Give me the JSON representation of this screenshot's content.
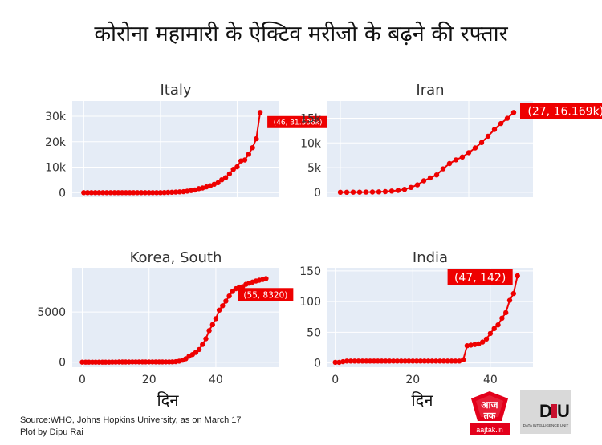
{
  "title": "कोरोना महामारी के ऐक्टिव मरीजो के बढ़ने की रफ्तार",
  "xlabel": "दिन",
  "source_text": "Source:WHO, Johns Hopkins University, as on March 17",
  "credit_text": "Plot by Dipu Rai",
  "logos": {
    "aajtak_text": "आज तक",
    "aajtak_url": "aajtak.in",
    "diu_text": "DIU",
    "diu_subtext": "DATA INTELLIGENCE UNIT"
  },
  "colors": {
    "line": "#ee0000",
    "plot_bg": "#e5ecf6",
    "grid": "#ffffff",
    "label_bg": "#ee0000"
  },
  "chart_data": [
    {
      "type": "line",
      "title": "Italy",
      "xlim": [
        -3,
        51
      ],
      "ylim": [
        -1800,
        36000
      ],
      "yticks": [
        0,
        10000,
        20000,
        30000
      ],
      "ytick_labels": [
        "0",
        "10k",
        "20k",
        "30k"
      ],
      "annotation": "(46, 31.506k)",
      "x": [
        0,
        1,
        2,
        3,
        4,
        5,
        6,
        7,
        8,
        9,
        10,
        11,
        12,
        13,
        14,
        15,
        16,
        17,
        18,
        19,
        20,
        21,
        22,
        23,
        24,
        25,
        26,
        27,
        28,
        29,
        30,
        31,
        32,
        33,
        34,
        35,
        36,
        37,
        38,
        39,
        40,
        41,
        42,
        43,
        44,
        45,
        46
      ],
      "y": [
        2,
        2,
        2,
        2,
        2,
        2,
        2,
        2,
        2,
        2,
        2,
        2,
        2,
        2,
        2,
        2,
        2,
        2,
        2,
        2,
        3,
        17,
        76,
        150,
        221,
        311,
        385,
        588,
        821,
        1049,
        1577,
        1835,
        2263,
        2706,
        3296,
        3916,
        5061,
        5883,
        7375,
        9172,
        10149,
        12462,
        12839,
        15113,
        17660,
        21157,
        31506
      ]
    },
    {
      "type": "line",
      "title": "Iran",
      "xlim": [
        -2,
        30
      ],
      "ylim": [
        -1000,
        18500
      ],
      "yticks": [
        0,
        5000,
        10000,
        15000
      ],
      "ytick_labels": [
        "0",
        "5k",
        "10k",
        "15k"
      ],
      "annotation": "(27, 16.169k)",
      "x": [
        0,
        1,
        2,
        3,
        4,
        5,
        6,
        7,
        8,
        9,
        10,
        11,
        12,
        13,
        14,
        15,
        16,
        17,
        18,
        19,
        20,
        21,
        22,
        23,
        24,
        25,
        26,
        27
      ],
      "y": [
        2,
        5,
        18,
        28,
        43,
        61,
        95,
        139,
        245,
        388,
        593,
        978,
        1501,
        2336,
        2922,
        3513,
        4747,
        5823,
        6566,
        7161,
        8042,
        9000,
        10075,
        11364,
        12729,
        13938,
        14991,
        16169
      ]
    },
    {
      "type": "line",
      "title": "Korea, South",
      "xlim": [
        -3,
        59
      ],
      "ylim": [
        -500,
        9400
      ],
      "yticks": [
        0,
        5000
      ],
      "ytick_labels": [
        "0",
        "5000"
      ],
      "xticks": [
        0,
        20,
        40
      ],
      "xtick_labels": [
        "0",
        "20",
        "40"
      ],
      "annotation": "(55, 8320)",
      "x": [
        0,
        1,
        2,
        3,
        4,
        5,
        6,
        7,
        8,
        9,
        10,
        11,
        12,
        13,
        14,
        15,
        16,
        17,
        18,
        19,
        20,
        21,
        22,
        23,
        24,
        25,
        26,
        27,
        28,
        29,
        30,
        31,
        32,
        33,
        34,
        35,
        36,
        37,
        38,
        39,
        40,
        41,
        42,
        43,
        44,
        45,
        46,
        47,
        48,
        49,
        50,
        51,
        52,
        53,
        54,
        55
      ],
      "y": [
        1,
        1,
        2,
        2,
        3,
        4,
        4,
        4,
        4,
        11,
        12,
        15,
        15,
        16,
        19,
        23,
        24,
        24,
        25,
        27,
        28,
        28,
        28,
        28,
        28,
        29,
        30,
        31,
        51,
        104,
        204,
        346,
        602,
        763,
        977,
        1261,
        1766,
        2337,
        3150,
        3736,
        4335,
        5186,
        5621,
        6088,
        6593,
        7041,
        7314,
        7478,
        7513,
        7755,
        7869,
        7979,
        8086,
        8162,
        8236,
        8320
      ]
    },
    {
      "type": "line",
      "title": "India",
      "xlim": [
        -2,
        51
      ],
      "ylim": [
        -7,
        155
      ],
      "yticks": [
        0,
        50,
        100,
        150
      ],
      "ytick_labels": [
        "0",
        "50",
        "100",
        "150"
      ],
      "xticks": [
        0,
        20,
        40
      ],
      "xtick_labels": [
        "0",
        "20",
        "40"
      ],
      "annotation": "(47, 142)",
      "x": [
        0,
        1,
        2,
        3,
        4,
        5,
        6,
        7,
        8,
        9,
        10,
        11,
        12,
        13,
        14,
        15,
        16,
        17,
        18,
        19,
        20,
        21,
        22,
        23,
        24,
        25,
        26,
        27,
        28,
        29,
        30,
        31,
        32,
        33,
        34,
        35,
        36,
        37,
        38,
        39,
        40,
        41,
        42,
        43,
        44,
        45,
        46,
        47
      ],
      "y": [
        1,
        1,
        2,
        3,
        3,
        3,
        3,
        3,
        3,
        3,
        3,
        3,
        3,
        3,
        3,
        3,
        3,
        3,
        3,
        3,
        3,
        3,
        3,
        3,
        3,
        3,
        3,
        3,
        3,
        3,
        3,
        3,
        3,
        5,
        28,
        29,
        30,
        31,
        34,
        39,
        48,
        56,
        62,
        73,
        82,
        102,
        113,
        142
      ]
    }
  ]
}
